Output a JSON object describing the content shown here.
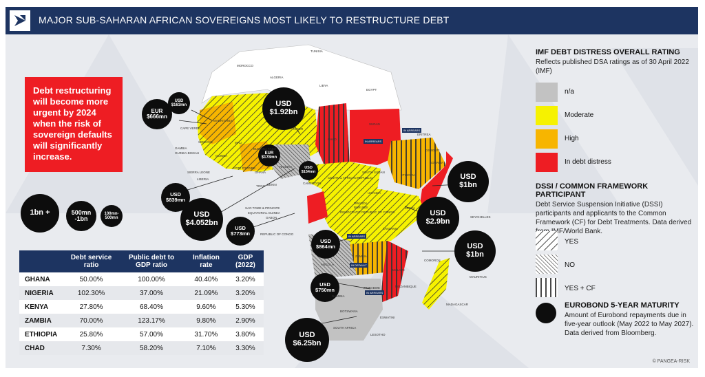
{
  "header": {
    "title": "MAJOR SUB-SAHARAN AFRICAN SOVEREIGNS MOST LIKELY TO RESTRUCTURE DEBT",
    "logo_icon": "pangea-risk-logo-icon"
  },
  "callout": {
    "text": "Debt restructuring will become more urgent by 2024 when the risk of sovereign defaults will significantly increase."
  },
  "legend": {
    "imf_title": "IMF DEBT DISTRESS OVERALL RATING",
    "imf_desc": "Reflects published DSA ratings as of 30 April 2022 (IMF)",
    "imf_items": [
      {
        "label": "n/a",
        "color": "#c2c2c2"
      },
      {
        "label": "Moderate",
        "color": "#f6f200"
      },
      {
        "label": "High",
        "color": "#f7b500"
      },
      {
        "label": "In debt distress",
        "color": "#ee1d23"
      }
    ],
    "dssi_title": "DSSI / COMMON FRAMEWORK PARTICIPANT",
    "dssi_desc": "Debt Service Suspension Initiative (DSSI) participants and applicants to the Common Framework (CF) for Debt Treatments. Data derived from IMF/World Bank.",
    "dssi_items": [
      {
        "label": "YES",
        "pattern": "diagonal-wide"
      },
      {
        "label": "NO",
        "pattern": "diagonal-dense"
      },
      {
        "label": "YES + CF",
        "pattern": "vertical"
      }
    ],
    "euro_title": "EUROBOND 5-YEAR MATURITY",
    "euro_desc": "Amount of Eurobond repayments due in five-year outlook (May 2022 to May 2027). Data derived from Bloomberg."
  },
  "size_key": [
    "1bn +",
    "500mn -1bn",
    "100mn-500mn"
  ],
  "bubbles": [
    {
      "line1": "EUR",
      "line2": "$666mn"
    },
    {
      "line1": "USD",
      "line2": "$163mn"
    },
    {
      "line1": "USD",
      "line2": "$1.92bn"
    },
    {
      "line1": "EUR",
      "line2": "$178mn"
    },
    {
      "line1": "USD",
      "line2": "$154mn"
    },
    {
      "line1": "USD",
      "line2": "$839mn"
    },
    {
      "line1": "USD",
      "line2": "$4.052bn"
    },
    {
      "line1": "USD",
      "line2": "$773mn"
    },
    {
      "line1": "USD",
      "line2": "$864mn"
    },
    {
      "line1": "USD",
      "line2": "$750mn"
    },
    {
      "line1": "USD",
      "line2": "$6.25bn"
    },
    {
      "line1": "USD",
      "line2": "$1bn"
    },
    {
      "line1": "USD",
      "line2": "$2.9bn"
    },
    {
      "line1": "USD",
      "line2": "$1bn"
    }
  ],
  "table": {
    "headers": [
      "",
      "Debt service ratio",
      "Public debt to GDP ratio",
      "Inflation rate",
      "GDP (2022)"
    ],
    "rows": [
      [
        "GHANA",
        "50.00%",
        "100.00%",
        "40.40%",
        "3.20%"
      ],
      [
        "NIGERIA",
        "102.30%",
        "37.00%",
        "21.09%",
        "3.20%"
      ],
      [
        "KENYA",
        "27.80%",
        "68.40%",
        "9.60%",
        "5.30%"
      ],
      [
        "ZAMBIA",
        "70.00%",
        "123.17%",
        "9.80%",
        "2.90%"
      ],
      [
        "ETHIOPIA",
        "25.80%",
        "57.00%",
        "31.70%",
        "3.80%"
      ],
      [
        "CHAD",
        "7.30%",
        "58.20%",
        "7.10%",
        "3.30%"
      ]
    ]
  },
  "country_labels": [
    "TUNISIA",
    "MOROCCO",
    "ALGERIA",
    "LIBYA",
    "EGYPT",
    "MAURITANIA",
    "MALI",
    "NIGER",
    "CHAD",
    "SUDAN",
    "ERITREA",
    "DJIBOUTI",
    "SOMALIA",
    "ETHIOPIA",
    "SOUTH SUDAN",
    "CAPE VERDE",
    "SENEGAL",
    "GAMBIA",
    "GUINEA-BISSAU",
    "GUINEA",
    "SIERRA LEONE",
    "LIBERIA",
    "COTE D'IVOIRE",
    "BURKINA FASO",
    "GHANA",
    "TOGO",
    "BENIN",
    "NIGERIA",
    "CAMEROON",
    "CENTRAL AFRICAN REPUBLIC",
    "SAO TOME & PRINCIPE",
    "EQUATORIAL GUINEA",
    "GABON",
    "REPUBLIC OF CONGO",
    "DEMOCRATIC REPUBLIC OF CONGO",
    "UGANDA",
    "KENYA",
    "RWANDA",
    "BURUNDI",
    "TANZANIA",
    "SEYCHELLES",
    "COMOROS",
    "ANGOLA",
    "ZAMBIA",
    "MALAWI",
    "MOZAMBIQUE",
    "ZIMBABWE",
    "NAMIBIA",
    "BOTSWANA",
    "MADAGASCAR",
    "MAURITIUS",
    "ESWATINI",
    "LESOTHO",
    "SOUTH AFRICA"
  ],
  "status_tags": [
    "IN ARREARS",
    "IN ARREARS",
    "IN DEFAULT",
    "IN ARREARS",
    "IN ARREARS"
  ],
  "copyright": "© PANGEA-RISK",
  "colors": {
    "navy": "#1d3461",
    "red": "#ee1d23",
    "yellow": "#f6f200",
    "orange": "#f7b500",
    "grey": "#c2c2c2"
  }
}
